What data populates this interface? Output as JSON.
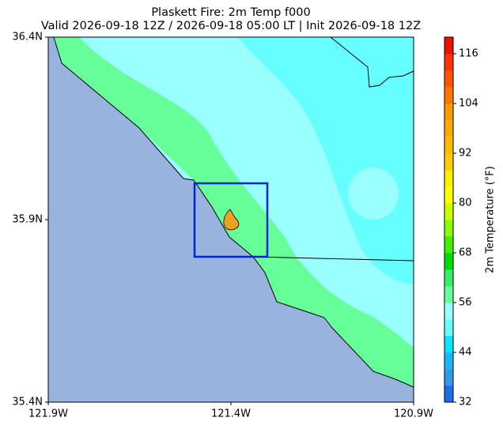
{
  "title": "Plaskett Fire: 2m Temp f000",
  "subtitle": "Valid 2026-09-18 12Z / 2026-09-18 05:00 LT | Init 2026-09-18 12Z",
  "map": {
    "lon_range": [
      -121.9,
      -120.9
    ],
    "lat_range": [
      35.4,
      36.4
    ],
    "lon_ticks": [
      {
        "value": -121.9,
        "label": "121.9W"
      },
      {
        "value": -121.4,
        "label": "121.4W"
      },
      {
        "value": -120.9,
        "label": "120.9W"
      }
    ],
    "lat_ticks": [
      {
        "value": 36.4,
        "label": "36.4N"
      },
      {
        "value": 35.9,
        "label": "35.9N"
      },
      {
        "value": 35.4,
        "label": "35.4N"
      }
    ]
  },
  "colorbar": {
    "label": "2m Temperature (°F)",
    "range": [
      32,
      120
    ],
    "ticks": [
      32,
      44,
      56,
      68,
      80,
      92,
      104,
      116
    ],
    "colors": [
      "#1e6eeb",
      "#2e9be8",
      "#1eb4ff",
      "#00e6ff",
      "#66ffff",
      "#99ffff",
      "#66ff99",
      "#33ee66",
      "#00dd00",
      "#44ee00",
      "#88ff00",
      "#ccff00",
      "#ffff00",
      "#ffee00",
      "#ffcc00",
      "#ffbb00",
      "#ffaa00",
      "#ff9900",
      "#ff7700",
      "#ff5500",
      "#ff3300",
      "#ee1100"
    ]
  }
}
